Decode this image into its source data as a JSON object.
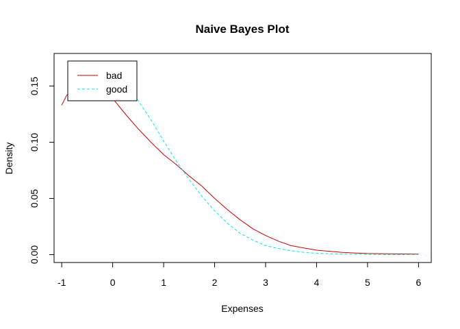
{
  "chart_data": {
    "type": "line",
    "title": "Naive Bayes Plot",
    "xlabel": "Expenses",
    "ylabel": "Density",
    "xlim": [
      -1.15,
      6.25
    ],
    "ylim": [
      -0.007,
      0.179
    ],
    "x_ticks": [
      -1,
      0,
      1,
      2,
      3,
      4,
      5,
      6
    ],
    "y_ticks": [
      0.0,
      0.05,
      0.1,
      0.15
    ],
    "x_tick_labels": [
      "-1",
      "0",
      "1",
      "2",
      "3",
      "4",
      "5",
      "6"
    ],
    "y_tick_labels": [
      "0.00",
      "0.05",
      "0.10",
      "0.15"
    ],
    "grid": false,
    "legend_position": "top-left",
    "series": [
      {
        "name": "bad",
        "color": "#cc0000",
        "line_style": "solid",
        "x": [
          -1.0,
          -0.9,
          -0.75,
          -0.5,
          -0.25,
          0.0,
          0.25,
          0.5,
          0.75,
          1.0,
          1.25,
          1.5,
          1.75,
          2.0,
          2.25,
          2.5,
          2.75,
          3.0,
          3.25,
          3.5,
          3.75,
          4.0,
          4.25,
          4.5,
          4.75,
          5.0,
          5.5,
          6.0
        ],
        "y": [
          0.133,
          0.142,
          0.145,
          0.146,
          0.145,
          0.139,
          0.125,
          0.112,
          0.1,
          0.089,
          0.08,
          0.07,
          0.061,
          0.05,
          0.04,
          0.031,
          0.023,
          0.017,
          0.012,
          0.008,
          0.006,
          0.004,
          0.003,
          0.002,
          0.0015,
          0.001,
          0.0007,
          0.0005
        ]
      },
      {
        "name": "good",
        "color": "#00e5ee",
        "line_style": "dashed",
        "x": [
          0.3,
          0.5,
          0.75,
          1.0,
          1.25,
          1.5,
          1.75,
          2.0,
          2.25,
          2.5,
          2.75,
          3.0,
          3.25,
          3.5,
          3.75,
          4.0,
          4.25,
          4.5,
          5.0,
          5.5,
          6.0
        ],
        "y": [
          0.148,
          0.137,
          0.12,
          0.101,
          0.083,
          0.067,
          0.052,
          0.039,
          0.028,
          0.019,
          0.013,
          0.008,
          0.0055,
          0.0035,
          0.002,
          0.0012,
          0.0008,
          0.0005,
          0.0002,
          0.0001,
          5e-05
        ]
      }
    ]
  }
}
